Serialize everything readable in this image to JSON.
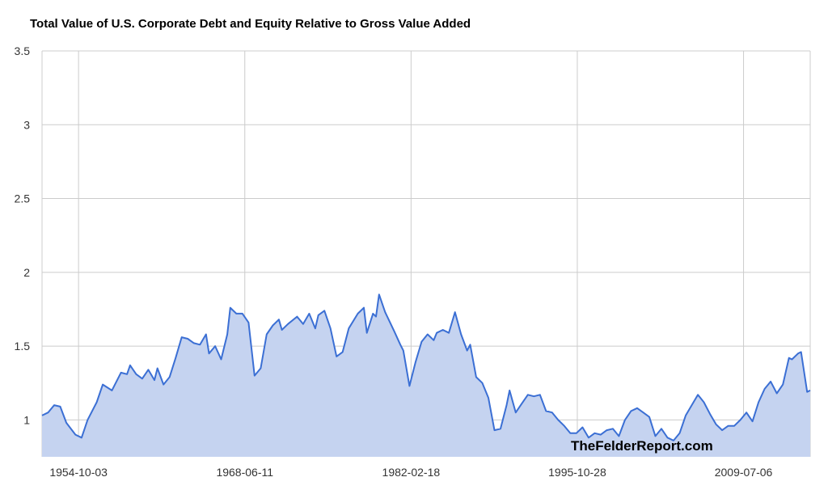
{
  "chart_data": {
    "type": "area",
    "title": "Total Value of U.S. Corporate Debt and Equity Relative to Gross Value Added",
    "xlabel": "",
    "ylabel": "",
    "x_ticks": [
      "1954-10-03",
      "1968-06-11",
      "1982-02-18",
      "1995-10-28",
      "2009-07-06"
    ],
    "y_ticks": [
      "1",
      "1.5",
      "2",
      "2.5",
      "3",
      "3.5"
    ],
    "ylim": [
      0.75,
      3.5
    ],
    "xlim": [
      "1951-10-01",
      "2015-01-01"
    ],
    "grid": true,
    "legend": "none",
    "series": [
      {
        "color": "#3b6fd4",
        "fill": "#c5d3f0",
        "points": [
          [
            "1951-10-01",
            1.03
          ],
          [
            "1952-04-01",
            1.05
          ],
          [
            "1952-10-01",
            1.1
          ],
          [
            "1953-04-01",
            1.09
          ],
          [
            "1953-10-01",
            0.98
          ],
          [
            "1954-07-01",
            0.9
          ],
          [
            "1955-01-01",
            0.88
          ],
          [
            "1955-07-01",
            1.0
          ],
          [
            "1956-04-01",
            1.12
          ],
          [
            "1956-10-01",
            1.24
          ],
          [
            "1957-07-01",
            1.2
          ],
          [
            "1958-04-01",
            1.32
          ],
          [
            "1958-10-01",
            1.31
          ],
          [
            "1959-01-01",
            1.37
          ],
          [
            "1959-07-01",
            1.31
          ],
          [
            "1960-01-01",
            1.28
          ],
          [
            "1960-07-01",
            1.34
          ],
          [
            "1961-01-01",
            1.27
          ],
          [
            "1961-04-01",
            1.35
          ],
          [
            "1961-10-01",
            1.24
          ],
          [
            "1962-04-01",
            1.29
          ],
          [
            "1962-10-01",
            1.42
          ],
          [
            "1963-04-01",
            1.56
          ],
          [
            "1963-10-01",
            1.55
          ],
          [
            "1964-04-01",
            1.52
          ],
          [
            "1964-10-01",
            1.51
          ],
          [
            "1965-04-01",
            1.58
          ],
          [
            "1965-07-01",
            1.45
          ],
          [
            "1966-01-01",
            1.5
          ],
          [
            "1966-07-01",
            1.41
          ],
          [
            "1967-01-01",
            1.58
          ],
          [
            "1967-04-01",
            1.76
          ],
          [
            "1967-10-01",
            1.72
          ],
          [
            "1968-04-01",
            1.72
          ],
          [
            "1968-10-01",
            1.66
          ],
          [
            "1969-04-01",
            1.3
          ],
          [
            "1969-10-01",
            1.35
          ],
          [
            "1970-04-01",
            1.58
          ],
          [
            "1970-10-01",
            1.64
          ],
          [
            "1971-04-01",
            1.68
          ],
          [
            "1971-07-01",
            1.61
          ],
          [
            "1972-01-01",
            1.65
          ],
          [
            "1972-10-01",
            1.7
          ],
          [
            "1973-04-01",
            1.65
          ],
          [
            "1973-10-01",
            1.72
          ],
          [
            "1974-04-01",
            1.62
          ],
          [
            "1974-07-01",
            1.71
          ],
          [
            "1975-01-01",
            1.74
          ],
          [
            "1975-07-01",
            1.62
          ],
          [
            "1976-01-01",
            1.43
          ],
          [
            "1976-07-01",
            1.46
          ],
          [
            "1977-01-01",
            1.62
          ],
          [
            "1977-10-01",
            1.72
          ],
          [
            "1978-04-01",
            1.76
          ],
          [
            "1978-07-01",
            1.59
          ],
          [
            "1979-01-01",
            1.72
          ],
          [
            "1979-04-01",
            1.7
          ],
          [
            "1979-07-01",
            1.85
          ],
          [
            "1980-01-01",
            1.73
          ],
          [
            "1980-10-01",
            1.6
          ],
          [
            "1981-04-01",
            1.51
          ],
          [
            "1981-07-01",
            1.47
          ],
          [
            "1982-01-01",
            1.23
          ],
          [
            "1982-07-01",
            1.39
          ],
          [
            "1983-01-01",
            1.53
          ],
          [
            "1983-07-01",
            1.58
          ],
          [
            "1984-01-01",
            1.54
          ],
          [
            "1984-04-01",
            1.59
          ],
          [
            "1984-10-01",
            1.61
          ],
          [
            "1985-04-01",
            1.59
          ],
          [
            "1985-10-01",
            1.73
          ],
          [
            "1986-04-01",
            1.58
          ],
          [
            "1986-10-01",
            1.47
          ],
          [
            "1987-01-01",
            1.51
          ],
          [
            "1987-07-01",
            1.29
          ],
          [
            "1988-01-01",
            1.25
          ],
          [
            "1988-07-01",
            1.15
          ],
          [
            "1989-01-01",
            0.93
          ],
          [
            "1989-07-01",
            0.94
          ],
          [
            "1990-01-01",
            1.1
          ],
          [
            "1990-04-01",
            1.2
          ],
          [
            "1990-10-01",
            1.05
          ],
          [
            "1991-04-01",
            1.11
          ],
          [
            "1991-10-01",
            1.17
          ],
          [
            "1992-04-01",
            1.16
          ],
          [
            "1992-10-01",
            1.17
          ],
          [
            "1993-04-01",
            1.06
          ],
          [
            "1993-10-01",
            1.05
          ],
          [
            "1994-04-01",
            1.0
          ],
          [
            "1994-10-01",
            0.96
          ],
          [
            "1995-04-01",
            0.91
          ],
          [
            "1995-10-01",
            0.91
          ],
          [
            "1996-04-01",
            0.95
          ],
          [
            "1996-10-01",
            0.88
          ],
          [
            "1997-04-01",
            0.91
          ],
          [
            "1997-10-01",
            0.9
          ],
          [
            "1998-04-01",
            0.93
          ],
          [
            "1998-10-01",
            0.94
          ],
          [
            "1999-04-01",
            0.89
          ],
          [
            "1999-10-01",
            1.0
          ],
          [
            "2000-04-01",
            1.06
          ],
          [
            "2000-10-01",
            1.08
          ],
          [
            "2001-04-01",
            1.05
          ],
          [
            "2001-10-01",
            1.02
          ],
          [
            "2002-04-01",
            0.89
          ],
          [
            "2002-10-01",
            0.94
          ],
          [
            "2003-04-01",
            0.88
          ],
          [
            "2003-10-01",
            0.86
          ],
          [
            "2004-04-01",
            0.91
          ],
          [
            "2004-10-01",
            1.03
          ],
          [
            "2005-04-01",
            1.1
          ],
          [
            "2005-10-01",
            1.17
          ],
          [
            "2006-04-01",
            1.12
          ],
          [
            "2006-10-01",
            1.04
          ],
          [
            "2007-04-01",
            0.97
          ],
          [
            "2007-10-01",
            0.93
          ],
          [
            "2008-04-01",
            0.96
          ],
          [
            "2008-10-01",
            0.96
          ],
          [
            "2009-04-01",
            1.0
          ],
          [
            "2009-10-01",
            1.05
          ],
          [
            "2010-04-01",
            0.99
          ],
          [
            "2010-10-01",
            1.12
          ],
          [
            "2011-04-01",
            1.21
          ],
          [
            "2011-10-01",
            1.26
          ],
          [
            "2012-04-01",
            1.18
          ],
          [
            "2012-10-01",
            1.24
          ],
          [
            "2013-04-01",
            1.42
          ],
          [
            "2013-07-01",
            1.41
          ],
          [
            "2014-01-01",
            1.45
          ],
          [
            "2014-04-01",
            1.46
          ],
          [
            "2014-10-01",
            1.19
          ],
          [
            "2015-01-01",
            1.2
          ]
        ]
      }
    ],
    "annotations": [
      "TheFelderReport.com"
    ]
  }
}
